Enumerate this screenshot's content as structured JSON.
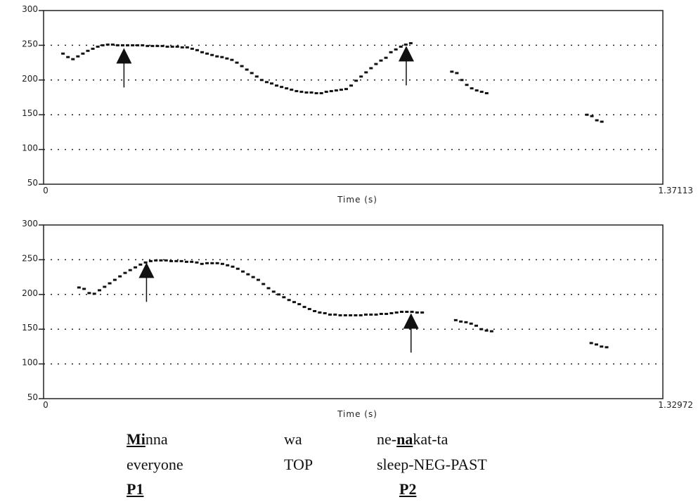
{
  "chart_data": [
    {
      "type": "scatter",
      "xlabel": "Time (s)",
      "xlim": [
        0,
        1.37113
      ],
      "x_tick_labels": [
        "0",
        "1.37113"
      ],
      "ylim": [
        50,
        300
      ],
      "y_ticks": [
        50,
        100,
        150,
        200,
        250,
        300
      ],
      "grid": true,
      "points": [
        [
          0.043,
          238
        ],
        [
          0.054,
          233
        ],
        [
          0.065,
          230
        ],
        [
          0.076,
          234
        ],
        [
          0.087,
          238
        ],
        [
          0.098,
          242
        ],
        [
          0.109,
          245
        ],
        [
          0.12,
          248
        ],
        [
          0.131,
          250
        ],
        [
          0.142,
          251
        ],
        [
          0.153,
          251
        ],
        [
          0.164,
          250
        ],
        [
          0.175,
          250
        ],
        [
          0.186,
          250
        ],
        [
          0.197,
          250
        ],
        [
          0.208,
          250
        ],
        [
          0.219,
          250
        ],
        [
          0.23,
          249
        ],
        [
          0.241,
          249
        ],
        [
          0.252,
          249
        ],
        [
          0.263,
          249
        ],
        [
          0.274,
          248
        ],
        [
          0.285,
          248
        ],
        [
          0.296,
          248
        ],
        [
          0.307,
          247
        ],
        [
          0.318,
          247
        ],
        [
          0.329,
          245
        ],
        [
          0.34,
          243
        ],
        [
          0.351,
          240
        ],
        [
          0.362,
          238
        ],
        [
          0.373,
          236
        ],
        [
          0.384,
          234
        ],
        [
          0.395,
          233
        ],
        [
          0.406,
          231
        ],
        [
          0.417,
          229
        ],
        [
          0.428,
          225
        ],
        [
          0.439,
          220
        ],
        [
          0.45,
          215
        ],
        [
          0.461,
          210
        ],
        [
          0.472,
          205
        ],
        [
          0.483,
          200
        ],
        [
          0.494,
          197
        ],
        [
          0.505,
          195
        ],
        [
          0.516,
          192
        ],
        [
          0.527,
          190
        ],
        [
          0.538,
          188
        ],
        [
          0.549,
          186
        ],
        [
          0.56,
          184
        ],
        [
          0.571,
          183
        ],
        [
          0.582,
          182
        ],
        [
          0.593,
          182
        ],
        [
          0.604,
          181
        ],
        [
          0.615,
          181
        ],
        [
          0.626,
          183
        ],
        [
          0.637,
          184
        ],
        [
          0.648,
          185
        ],
        [
          0.659,
          186
        ],
        [
          0.67,
          187
        ],
        [
          0.681,
          192
        ],
        [
          0.692,
          199
        ],
        [
          0.703,
          205
        ],
        [
          0.714,
          211
        ],
        [
          0.725,
          217
        ],
        [
          0.736,
          223
        ],
        [
          0.747,
          228
        ],
        [
          0.758,
          232
        ],
        [
          0.769,
          240
        ],
        [
          0.78,
          244
        ],
        [
          0.791,
          248
        ],
        [
          0.802,
          251
        ],
        [
          0.813,
          253
        ],
        [
          0.904,
          212
        ],
        [
          0.915,
          210
        ],
        [
          0.926,
          200
        ],
        [
          0.937,
          193
        ],
        [
          0.948,
          188
        ],
        [
          0.959,
          185
        ],
        [
          0.97,
          183
        ],
        [
          0.981,
          181
        ],
        [
          1.203,
          150
        ],
        [
          1.214,
          148
        ],
        [
          1.225,
          142
        ],
        [
          1.236,
          140
        ]
      ],
      "arrows": [
        {
          "x": 0.178,
          "y": 248
        },
        {
          "x": 0.803,
          "y": 251
        }
      ]
    },
    {
      "type": "scatter",
      "xlabel": "Time (s)",
      "xlim": [
        0,
        1.32972
      ],
      "x_tick_labels": [
        "0",
        "1.32972"
      ],
      "ylim": [
        50,
        300
      ],
      "y_ticks": [
        50,
        100,
        150,
        200,
        250,
        300
      ],
      "grid": true,
      "points": [
        [
          0.076,
          210
        ],
        [
          0.087,
          208
        ],
        [
          0.098,
          202
        ],
        [
          0.109,
          201
        ],
        [
          0.12,
          206
        ],
        [
          0.131,
          211
        ],
        [
          0.142,
          216
        ],
        [
          0.153,
          221
        ],
        [
          0.164,
          226
        ],
        [
          0.175,
          231
        ],
        [
          0.186,
          235
        ],
        [
          0.197,
          239
        ],
        [
          0.208,
          243
        ],
        [
          0.219,
          246
        ],
        [
          0.23,
          248
        ],
        [
          0.241,
          249
        ],
        [
          0.252,
          249
        ],
        [
          0.263,
          249
        ],
        [
          0.274,
          248
        ],
        [
          0.285,
          248
        ],
        [
          0.296,
          248
        ],
        [
          0.307,
          247
        ],
        [
          0.318,
          247
        ],
        [
          0.329,
          246
        ],
        [
          0.34,
          244
        ],
        [
          0.351,
          245
        ],
        [
          0.362,
          245
        ],
        [
          0.373,
          245
        ],
        [
          0.384,
          244
        ],
        [
          0.395,
          242
        ],
        [
          0.406,
          240
        ],
        [
          0.417,
          237
        ],
        [
          0.428,
          233
        ],
        [
          0.439,
          229
        ],
        [
          0.45,
          225
        ],
        [
          0.461,
          221
        ],
        [
          0.472,
          215
        ],
        [
          0.483,
          209
        ],
        [
          0.494,
          204
        ],
        [
          0.505,
          200
        ],
        [
          0.516,
          196
        ],
        [
          0.527,
          192
        ],
        [
          0.538,
          189
        ],
        [
          0.549,
          186
        ],
        [
          0.56,
          182
        ],
        [
          0.571,
          179
        ],
        [
          0.582,
          176
        ],
        [
          0.593,
          174
        ],
        [
          0.604,
          173
        ],
        [
          0.615,
          171
        ],
        [
          0.626,
          171
        ],
        [
          0.637,
          170
        ],
        [
          0.648,
          170
        ],
        [
          0.659,
          170
        ],
        [
          0.67,
          170
        ],
        [
          0.681,
          170
        ],
        [
          0.692,
          171
        ],
        [
          0.703,
          171
        ],
        [
          0.714,
          171
        ],
        [
          0.725,
          172
        ],
        [
          0.736,
          172
        ],
        [
          0.747,
          173
        ],
        [
          0.758,
          174
        ],
        [
          0.769,
          175
        ],
        [
          0.78,
          175
        ],
        [
          0.791,
          175
        ],
        [
          0.802,
          174
        ],
        [
          0.813,
          174
        ],
        [
          0.885,
          163
        ],
        [
          0.896,
          161
        ],
        [
          0.907,
          160
        ],
        [
          0.918,
          158
        ],
        [
          0.929,
          155
        ],
        [
          0.94,
          150
        ],
        [
          0.951,
          148
        ],
        [
          0.962,
          147
        ],
        [
          1.176,
          130
        ],
        [
          1.187,
          128
        ],
        [
          1.198,
          125
        ],
        [
          1.209,
          124
        ]
      ],
      "arrows": [
        {
          "x": 0.221,
          "y": 248
        },
        {
          "x": 0.789,
          "y": 175
        }
      ]
    }
  ],
  "gloss": {
    "col1": {
      "word_bold": "Mi",
      "word_rest": "nna",
      "gloss": "everyone",
      "label": "P1"
    },
    "col2": {
      "word": "wa",
      "gloss": "TOP"
    },
    "col3": {
      "word_pre": "ne-",
      "word_bold": "na",
      "word_rest": "kat-ta",
      "gloss": "sleep-NEG-PAST",
      "label": "P2"
    }
  }
}
